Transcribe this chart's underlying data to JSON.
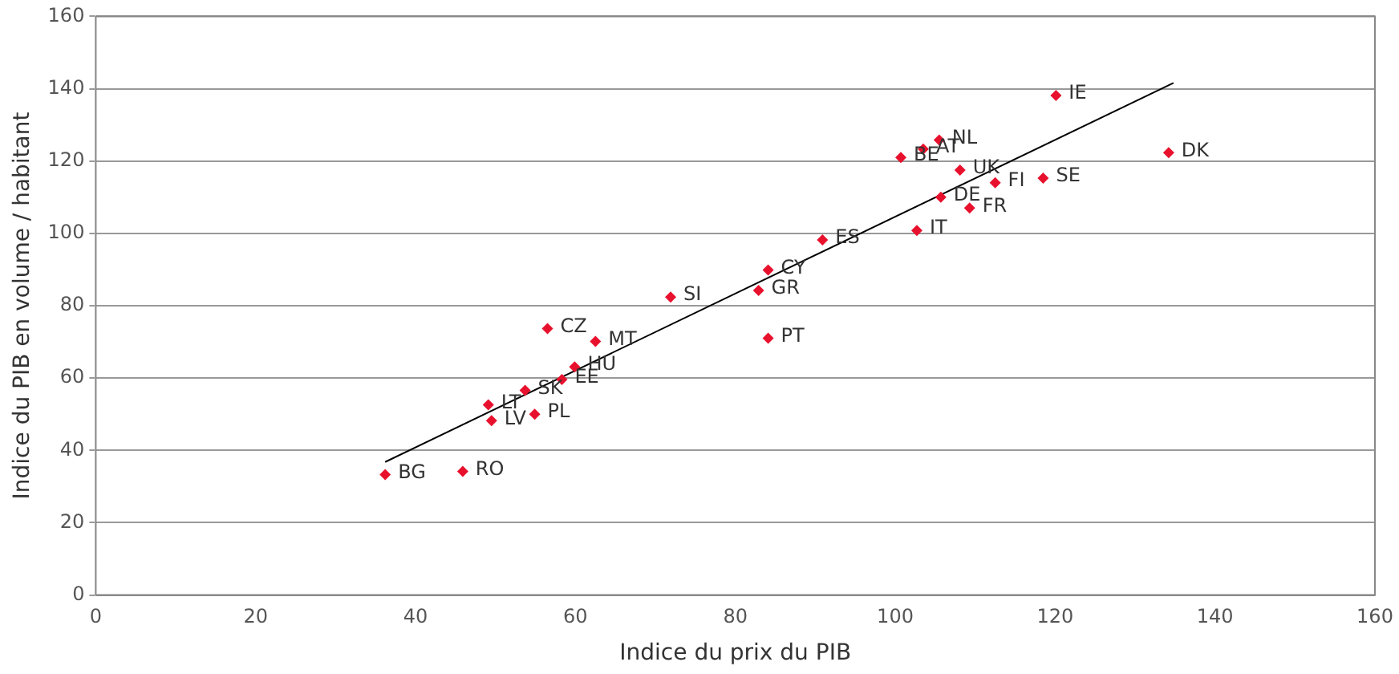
{
  "chart_data": {
    "type": "scatter",
    "xlabel": "Indice du prix du PIB",
    "ylabel": "Indice du PIB en volume / habitant",
    "xlim": [
      0,
      160
    ],
    "xticks": [
      0,
      20,
      40,
      60,
      80,
      100,
      120,
      140,
      160
    ],
    "ylim": [
      0,
      160
    ],
    "yticks": [
      0,
      20,
      40,
      60,
      80,
      100,
      120,
      140,
      160
    ],
    "grid": "y",
    "legend": false,
    "marker": "diamond",
    "series": [
      {
        "color": "#e8112d",
        "x": [
          36.2,
          45.9,
          49.5,
          54.9,
          49.1,
          53.7,
          58.3,
          59.9,
          56.5,
          62.5,
          84.1,
          71.9,
          82.9,
          84.1,
          90.9,
          102.7,
          105.7,
          109.3,
          112.5,
          108.1,
          118.5,
          100.7,
          103.5,
          105.5,
          120.1,
          134.2
        ],
        "values": [
          33.3,
          34.2,
          48.2,
          50,
          52.6,
          56.6,
          59.6,
          63.1,
          73.7,
          70.1,
          71,
          82.4,
          84.2,
          89.9,
          98.2,
          100.8,
          110,
          107,
          114,
          117.5,
          115.3,
          121,
          123.3,
          125.8,
          138.1,
          122.3
        ]
      },
      {
        "type": "line",
        "color": "#000000",
        "marker": "none",
        "x": [
          36.2,
          134.8
        ],
        "values": [
          36.8,
          141.6
        ]
      }
    ],
    "annotations": [
      {
        "text": "BG",
        "x": 36.2,
        "y": 33.3
      },
      {
        "text": "RO",
        "x": 45.9,
        "y": 34.2
      },
      {
        "text": "LV",
        "x": 49.5,
        "y": 48.2
      },
      {
        "text": "PL",
        "x": 54.9,
        "y": 50
      },
      {
        "text": "LT",
        "x": 49.1,
        "y": 52.6
      },
      {
        "text": "SK",
        "x": 53.7,
        "y": 56.6
      },
      {
        "text": "EE",
        "x": 58.3,
        "y": 59.6
      },
      {
        "text": "HU",
        "x": 59.9,
        "y": 63.1
      },
      {
        "text": "CZ",
        "x": 56.5,
        "y": 73.7
      },
      {
        "text": "MT",
        "x": 62.5,
        "y": 70.1
      },
      {
        "text": "PT",
        "x": 84.1,
        "y": 71
      },
      {
        "text": "SI",
        "x": 71.9,
        "y": 82.4
      },
      {
        "text": "GR",
        "x": 82.9,
        "y": 84.2
      },
      {
        "text": "CY",
        "x": 84.1,
        "y": 89.9
      },
      {
        "text": "ES",
        "x": 90.9,
        "y": 98.2
      },
      {
        "text": "IT",
        "x": 102.7,
        "y": 100.8
      },
      {
        "text": "DE",
        "x": 105.7,
        "y": 110
      },
      {
        "text": "FR",
        "x": 109.3,
        "y": 107
      },
      {
        "text": "FI",
        "x": 112.5,
        "y": 114
      },
      {
        "text": "UK",
        "x": 108.1,
        "y": 117.5
      },
      {
        "text": "SE",
        "x": 118.5,
        "y": 115.3
      },
      {
        "text": "BE",
        "x": 100.7,
        "y": 121
      },
      {
        "text": "AT",
        "x": 103.5,
        "y": 123.3
      },
      {
        "text": "NL",
        "x": 105.5,
        "y": 125.8
      },
      {
        "text": "IE",
        "x": 120.1,
        "y": 138.1
      },
      {
        "text": "DK",
        "x": 134.2,
        "y": 122.3
      }
    ]
  }
}
